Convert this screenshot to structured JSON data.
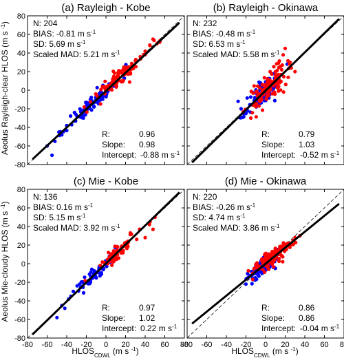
{
  "figure": {
    "ylabel_top": "Aeolus Rayleigh-clear HLOS",
    "ylabel_bottom": "Aeolus Mie-cloudy HLOS",
    "ylabel_unit": "(m s",
    "xlabel_main": "HLOS",
    "xlabel_sub": "CDWL",
    "xlabel_unit": "(m s",
    "unit_exp": "-1",
    "unit_close": ")"
  },
  "chart_data": [
    {
      "type": "scatter",
      "title": "(a) Rayleigh - Kobe",
      "xlim": [
        -80,
        80
      ],
      "ylim": [
        -80,
        80
      ],
      "xticks": [
        -80,
        -60,
        -40,
        -20,
        0,
        20,
        40,
        60,
        80
      ],
      "yticks": [
        -80,
        -60,
        -40,
        -20,
        0,
        20,
        40,
        60,
        80
      ],
      "stats": {
        "N": "204",
        "BIAS": "-0.81",
        "SD": "5.69",
        "MAD": "5.21",
        "R": "0.96",
        "Slope": "0.98",
        "Intercept": "-0.88"
      },
      "fit": {
        "slope": 0.98,
        "intercept": -0.88
      },
      "series": [
        {
          "color": "#0000ff",
          "center": [
            -12,
            -12
          ],
          "spread": [
            14,
            14
          ],
          "count": 110,
          "corr": 0.95,
          "seed": 11,
          "extra": [
            [
              -60,
              -60
            ],
            [
              -52,
              -55
            ],
            [
              -48,
              -45
            ],
            [
              -45,
              -48
            ],
            [
              -55,
              -70
            ],
            [
              -40,
              -38
            ]
          ]
        },
        {
          "color": "#ff0000",
          "center": [
            15,
            15
          ],
          "spread": [
            14,
            14
          ],
          "count": 94,
          "corr": 0.94,
          "seed": 12,
          "extra": [
            [
              48,
              55
            ],
            [
              52,
              50
            ],
            [
              45,
              48
            ],
            [
              55,
              53
            ],
            [
              40,
              42
            ]
          ]
        }
      ]
    },
    {
      "type": "scatter",
      "title": "(b) Rayleigh - Okinawa",
      "xlim": [
        -80,
        80
      ],
      "ylim": [
        -80,
        80
      ],
      "xticks": [
        -80,
        -60,
        -40,
        -20,
        0,
        20,
        40,
        60,
        80
      ],
      "yticks": [
        -80,
        -60,
        -40,
        -20,
        0,
        20,
        40,
        60,
        80
      ],
      "stats": {
        "N": "232",
        "BIAS": "-0.48",
        "SD": "6.53",
        "MAD": "5.58",
        "R": "0.79",
        "Slope": "1.03",
        "Intercept": "-0.52"
      },
      "fit": {
        "slope": 1.03,
        "intercept": -0.52
      },
      "series": [
        {
          "color": "#0000ff",
          "center": [
            -2,
            -3
          ],
          "spread": [
            8,
            10
          ],
          "count": 110,
          "corr": 0.78,
          "seed": 21,
          "extra": [
            [
              -28,
              -12
            ],
            [
              -25,
              -20
            ],
            [
              -20,
              -25
            ],
            [
              22,
              28
            ]
          ]
        },
        {
          "color": "#ff0000",
          "center": [
            4,
            4
          ],
          "spread": [
            9,
            11
          ],
          "count": 122,
          "corr": 0.76,
          "seed": 22,
          "extra": [
            [
              20,
              45
            ],
            [
              25,
              30
            ],
            [
              18,
              38
            ],
            [
              -15,
              -30
            ],
            [
              30,
              20
            ]
          ]
        }
      ]
    },
    {
      "type": "scatter",
      "title": "(c) Mie - Kobe",
      "xlim": [
        -80,
        80
      ],
      "ylim": [
        -80,
        80
      ],
      "xticks": [
        -80,
        -60,
        -40,
        -20,
        0,
        20,
        40,
        60,
        80
      ],
      "yticks": [
        -80,
        -60,
        -40,
        -20,
        0,
        20,
        40,
        60,
        80
      ],
      "stats": {
        "N": "136",
        "BIAS": "0.16",
        "SD": "5.15",
        "MAD": "3.92",
        "R": "0.97",
        "Slope": "1.02",
        "Intercept": "0.22"
      },
      "fit": {
        "slope": 1.02,
        "intercept": 0.22
      },
      "series": [
        {
          "color": "#0000ff",
          "center": [
            -10,
            -10
          ],
          "spread": [
            12,
            12
          ],
          "count": 76,
          "corr": 0.95,
          "seed": 31,
          "extra": [
            [
              -50,
              -58
            ],
            [
              -45,
              -45
            ],
            [
              -42,
              -48
            ],
            [
              -38,
              -38
            ]
          ]
        },
        {
          "color": "#ff0000",
          "center": [
            12,
            13
          ],
          "spread": [
            12,
            12
          ],
          "count": 60,
          "corr": 0.94,
          "seed": 32,
          "extra": [
            [
              45,
              45
            ],
            [
              48,
              37
            ],
            [
              50,
              50
            ],
            [
              40,
              28
            ]
          ]
        }
      ]
    },
    {
      "type": "scatter",
      "title": "(d) Mie - Okinawa",
      "xlim": [
        -80,
        80
      ],
      "ylim": [
        -80,
        80
      ],
      "xticks": [
        -80,
        -60,
        -40,
        -20,
        0,
        20,
        40,
        60,
        80
      ],
      "yticks": [
        -80,
        -60,
        -40,
        -20,
        0,
        20,
        40,
        60,
        80
      ],
      "stats": {
        "N": "220",
        "BIAS": "-0.26",
        "SD": "4.74",
        "MAD": "3.86",
        "R": "0.86",
        "Slope": "0.86",
        "Intercept": "-0.04"
      },
      "fit": {
        "slope": 0.86,
        "intercept": -0.04
      },
      "series": [
        {
          "color": "#0000ff",
          "center": [
            -1,
            -2
          ],
          "spread": [
            8,
            8
          ],
          "count": 100,
          "corr": 0.85,
          "seed": 41,
          "extra": [
            [
              -20,
              -22
            ],
            [
              -18,
              -15
            ],
            [
              10,
              -5
            ]
          ]
        },
        {
          "color": "#ff0000",
          "center": [
            6,
            6
          ],
          "spread": [
            10,
            9
          ],
          "count": 120,
          "corr": 0.85,
          "seed": 42,
          "extra": [
            [
              30,
              28
            ],
            [
              35,
              30
            ],
            [
              28,
              25
            ],
            [
              25,
              22
            ]
          ]
        }
      ]
    }
  ]
}
